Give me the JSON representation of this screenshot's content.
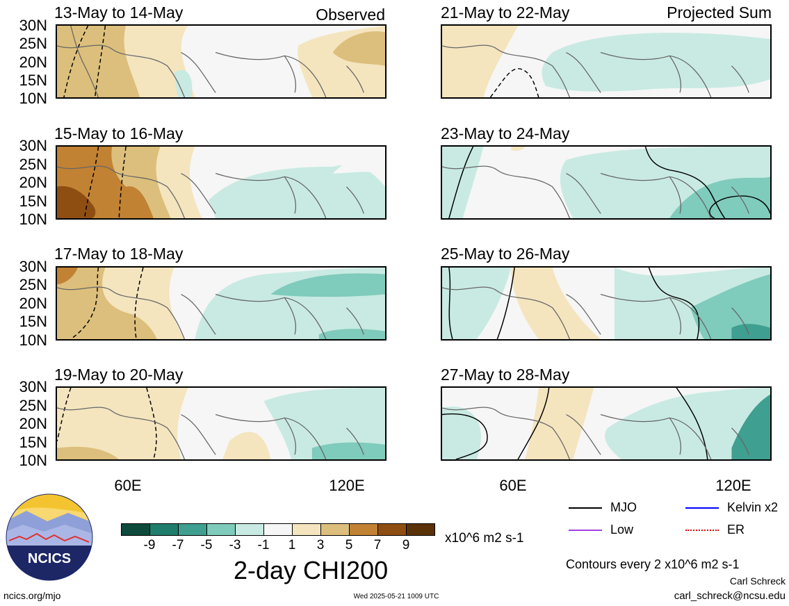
{
  "panels": [
    {
      "id": "p1",
      "title": "13-May to 14-May",
      "corner": "Observed"
    },
    {
      "id": "p2",
      "title": "21-May to 22-May",
      "corner": "Projected Sum"
    },
    {
      "id": "p3",
      "title": "15-May to 16-May",
      "corner": ""
    },
    {
      "id": "p4",
      "title": "23-May to 24-May",
      "corner": ""
    },
    {
      "id": "p5",
      "title": "17-May to 18-May",
      "corner": ""
    },
    {
      "id": "p6",
      "title": "25-May to 26-May",
      "corner": ""
    },
    {
      "id": "p7",
      "title": "19-May to 20-May",
      "corner": ""
    },
    {
      "id": "p8",
      "title": "27-May to 28-May",
      "corner": ""
    }
  ],
  "lat_labels": [
    "30N",
    "25N",
    "20N",
    "15N",
    "10N"
  ],
  "lon_labels": [
    "60E",
    "120E"
  ],
  "colorbar": {
    "colors": [
      "#0d4a3c",
      "#1f7d6b",
      "#3f9f90",
      "#7fcbbc",
      "#c8eae2",
      "#f6f6f6",
      "#f4e5bf",
      "#dcbf7c",
      "#c28233",
      "#8e4e12",
      "#593207"
    ],
    "ticks": [
      "-9",
      "-7",
      "-5",
      "-3",
      "-1",
      "1",
      "3",
      "5",
      "7",
      "9"
    ],
    "units": "x10^6 m2 s-1",
    "title": "2-day CHI200"
  },
  "legend": [
    {
      "label": "MJO",
      "color": "#000000"
    },
    {
      "label": "Kelvin x2",
      "color": "#0000ff"
    },
    {
      "label": "Low",
      "color": "#a040e0"
    },
    {
      "label": "ER",
      "color": "#e00000"
    }
  ],
  "contour_note": "Contours every 2 x10^6 m2 s-1",
  "author": "Carl Schreck",
  "email": "carl_schreck@ncsu.edu",
  "website": "ncics.org/mjo",
  "timestamp": "Wed 2025-05-21 1009 UTC",
  "logo_text": "NCICS"
}
